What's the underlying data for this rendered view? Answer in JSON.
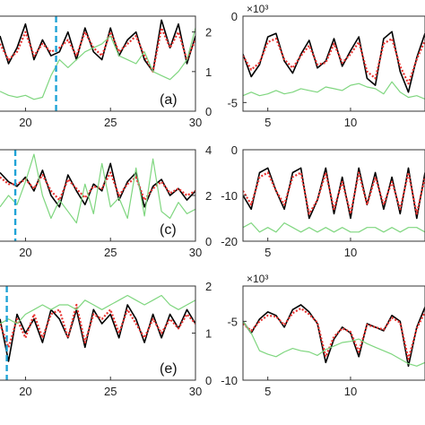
{
  "chart_data": [
    {
      "type": "line",
      "panel": "left-top",
      "label": "(a)",
      "xlim": [
        18.5,
        30
      ],
      "ylim": [
        0,
        2.4
      ],
      "xticks": [
        20,
        25,
        30
      ],
      "yticks": [
        0,
        1,
        2
      ],
      "vline_x": 21.8,
      "series": [
        {
          "color": "#000000",
          "style": "solid",
          "x": [
            18.5,
            19,
            19.5,
            20,
            20.5,
            21,
            21.5,
            22,
            22.5,
            23,
            23.5,
            24,
            24.5,
            25,
            25.5,
            26,
            26.5,
            27,
            27.5,
            28,
            28.5,
            29,
            29.5,
            30
          ],
          "y": [
            1.9,
            1.2,
            1.6,
            2.2,
            1.3,
            1.8,
            1.4,
            1.5,
            2.0,
            1.3,
            2.1,
            1.5,
            1.3,
            2.1,
            1.4,
            1.8,
            2.0,
            1.3,
            1.0,
            2.3,
            1.6,
            2.2,
            1.2,
            1.9
          ]
        },
        {
          "color": "#e8322f",
          "style": "dotted",
          "x": [
            18.5,
            19,
            19.5,
            20,
            20.5,
            21,
            21.5,
            22,
            22.5,
            23,
            23.5,
            24,
            24.5,
            25,
            25.5,
            26,
            26.5,
            27,
            27.5,
            28,
            28.5,
            29,
            29.5,
            30
          ],
          "y": [
            1.7,
            1.3,
            1.5,
            2.0,
            1.4,
            1.7,
            1.5,
            1.6,
            1.8,
            1.4,
            2.0,
            1.6,
            1.4,
            2.0,
            1.5,
            1.7,
            1.9,
            1.4,
            1.0,
            2.1,
            1.6,
            2.0,
            1.3,
            1.8
          ]
        },
        {
          "color": "#7fd67f",
          "style": "solid",
          "x": [
            18.5,
            19,
            19.5,
            20,
            20.5,
            21,
            21.5,
            22,
            22.5,
            23,
            23.5,
            24,
            24.5,
            25,
            25.5,
            26,
            26.5,
            27,
            27.5,
            28,
            28.5,
            29,
            29.5,
            30
          ],
          "y": [
            0.5,
            0.4,
            0.35,
            0.4,
            0.3,
            0.35,
            0.9,
            1.3,
            1.1,
            1.3,
            1.5,
            1.6,
            1.7,
            1.9,
            1.4,
            1.3,
            1.2,
            1.5,
            1.0,
            0.9,
            0.8,
            1.0,
            1.3,
            2.1
          ]
        }
      ]
    },
    {
      "type": "line",
      "panel": "right-top",
      "multiplier": "×10³",
      "xlim": [
        3.5,
        14.5
      ],
      "ylim": [
        -5.5,
        0
      ],
      "xticks": [
        5,
        10
      ],
      "yticks": [
        -5,
        0
      ],
      "series": [
        {
          "color": "#000000",
          "style": "solid",
          "x": [
            3.5,
            4,
            4.5,
            5,
            5.5,
            6,
            6.5,
            7,
            7.5,
            8,
            8.5,
            9,
            9.5,
            10,
            10.5,
            11,
            11.5,
            12,
            12.5,
            13,
            13.5,
            14,
            14.5
          ],
          "y": [
            -2.2,
            -3.5,
            -2.8,
            -1.2,
            -1.0,
            -2.6,
            -3.3,
            -2.2,
            -1.4,
            -3.0,
            -2.6,
            -1.3,
            -2.9,
            -2.0,
            -1.2,
            -3.6,
            -4.0,
            -1.3,
            -0.9,
            -3.2,
            -4.4,
            -2.4,
            -1.0
          ]
        },
        {
          "color": "#e8322f",
          "style": "dotted",
          "x": [
            3.5,
            4,
            4.5,
            5,
            5.5,
            6,
            6.5,
            7,
            7.5,
            8,
            8.5,
            9,
            9.5,
            10,
            10.5,
            11,
            11.5,
            12,
            12.5,
            13,
            13.5,
            14,
            14.5
          ],
          "y": [
            -2.3,
            -3.1,
            -2.7,
            -1.5,
            -1.3,
            -2.5,
            -3.0,
            -2.3,
            -1.7,
            -2.8,
            -2.7,
            -1.6,
            -2.7,
            -2.2,
            -1.5,
            -3.2,
            -3.6,
            -1.6,
            -1.3,
            -2.9,
            -3.9,
            -2.5,
            -1.4
          ]
        },
        {
          "color": "#7fd67f",
          "style": "solid",
          "x": [
            3.5,
            4,
            4.5,
            5,
            5.5,
            6,
            6.5,
            7,
            7.5,
            8,
            8.5,
            9,
            9.5,
            10,
            10.5,
            11,
            11.5,
            12,
            12.5,
            13,
            13.5,
            14,
            14.5
          ],
          "y": [
            -4.6,
            -4.4,
            -4.6,
            -4.5,
            -4.3,
            -4.5,
            -4.4,
            -4.2,
            -4.3,
            -4.4,
            -4.1,
            -4.2,
            -4.3,
            -4.0,
            -3.9,
            -4.1,
            -4.2,
            -4.5,
            -3.8,
            -4.4,
            -4.7,
            -4.6,
            -4.8
          ]
        }
      ]
    },
    {
      "type": "line",
      "panel": "left-middle",
      "label": "(c)",
      "xlim": [
        18.5,
        30
      ],
      "ylim": [
        0,
        4
      ],
      "xticks": [
        20,
        25,
        30
      ],
      "yticks": [
        0,
        2,
        4
      ],
      "vline_x": 19.4,
      "series": [
        {
          "color": "#000000",
          "style": "solid",
          "x": [
            18.5,
            19,
            19.5,
            20,
            20.5,
            21,
            21.5,
            22,
            22.5,
            23,
            23.5,
            24,
            24.5,
            25,
            25.5,
            26,
            26.5,
            27,
            27.5,
            28,
            28.5,
            29,
            29.5,
            30
          ],
          "y": [
            3.0,
            2.6,
            2.4,
            2.8,
            2.2,
            3.1,
            2.0,
            1.5,
            2.9,
            2.2,
            1.6,
            2.5,
            2.2,
            3.4,
            1.8,
            2.6,
            3.0,
            1.5,
            2.4,
            2.7,
            2.0,
            2.3,
            1.8,
            2.2
          ]
        },
        {
          "color": "#e8322f",
          "style": "dotted",
          "x": [
            18.5,
            19,
            19.5,
            20,
            20.5,
            21,
            21.5,
            22,
            22.5,
            23,
            23.5,
            24,
            24.5,
            25,
            25.5,
            26,
            26.5,
            27,
            27.5,
            28,
            28.5,
            29,
            29.5,
            30
          ],
          "y": [
            2.8,
            2.5,
            2.5,
            2.7,
            2.3,
            2.9,
            2.2,
            1.8,
            2.7,
            2.3,
            1.9,
            2.4,
            2.3,
            3.0,
            2.0,
            2.5,
            2.8,
            1.8,
            2.3,
            2.6,
            2.1,
            2.3,
            2.0,
            2.2
          ]
        },
        {
          "color": "#7fd67f",
          "style": "solid",
          "x": [
            18.5,
            19,
            19.5,
            20,
            20.5,
            21,
            21.5,
            22,
            22.5,
            23,
            23.5,
            24,
            24.5,
            25,
            25.5,
            26,
            26.5,
            27,
            27.5,
            28,
            28.5,
            29,
            29.5,
            30
          ],
          "y": [
            1.5,
            2.0,
            1.6,
            2.6,
            3.8,
            2.0,
            1.0,
            1.8,
            1.3,
            0.8,
            2.5,
            1.2,
            3.4,
            1.5,
            1.9,
            1.0,
            3.2,
            1.1,
            3.6,
            1.3,
            1.0,
            1.7,
            1.2,
            1.4
          ]
        }
      ]
    },
    {
      "type": "line",
      "panel": "right-middle",
      "xlim": [
        3.5,
        14.5
      ],
      "ylim": [
        -20,
        0
      ],
      "xticks": [
        5,
        10
      ],
      "yticks": [
        -20,
        -10,
        0
      ],
      "series": [
        {
          "color": "#000000",
          "style": "solid",
          "x": [
            3.5,
            4,
            4.5,
            5,
            5.5,
            6,
            6.5,
            7,
            7.5,
            8,
            8.5,
            9,
            9.5,
            10,
            10.5,
            11,
            11.5,
            12,
            12.5,
            13,
            13.5,
            14,
            14.5
          ],
          "y": [
            -10,
            -13,
            -5,
            -4,
            -9,
            -13,
            -5,
            -4,
            -15,
            -11,
            -4,
            -14,
            -6,
            -15,
            -4,
            -12,
            -5,
            -13,
            -6,
            -14,
            -4,
            -15,
            -5
          ]
        },
        {
          "color": "#e8322f",
          "style": "dotted",
          "x": [
            3.5,
            4,
            4.5,
            5,
            5.5,
            6,
            6.5,
            7,
            7.5,
            8,
            8.5,
            9,
            9.5,
            10,
            10.5,
            11,
            11.5,
            12,
            12.5,
            13,
            13.5,
            14,
            14.5
          ],
          "y": [
            -9,
            -12,
            -6,
            -5,
            -9,
            -12,
            -6,
            -5,
            -14,
            -11,
            -5,
            -13,
            -7,
            -14,
            -5,
            -12,
            -6,
            -12,
            -7,
            -13,
            -5,
            -14,
            -6
          ]
        },
        {
          "color": "#7fd67f",
          "style": "solid",
          "x": [
            3.5,
            4,
            4.5,
            5,
            5.5,
            6,
            6.5,
            7,
            7.5,
            8,
            8.5,
            9,
            9.5,
            10,
            10.5,
            11,
            11.5,
            12,
            12.5,
            13,
            13.5,
            14,
            14.5
          ],
          "y": [
            -17,
            -16,
            -18,
            -17,
            -18,
            -16,
            -17,
            -18,
            -17,
            -18,
            -17,
            -18,
            -17,
            -18,
            -18,
            -17,
            -17,
            -18,
            -17,
            -18,
            -17,
            -17,
            -18
          ]
        }
      ]
    },
    {
      "type": "line",
      "panel": "left-bottom",
      "label": "(e)",
      "xlim": [
        18.5,
        30
      ],
      "ylim": [
        0,
        2
      ],
      "xticks": [
        20,
        25,
        30
      ],
      "yticks": [
        0,
        1,
        2
      ],
      "vline_x": 18.9,
      "series": [
        {
          "color": "#000000",
          "style": "solid",
          "x": [
            18.5,
            19,
            19.5,
            20,
            20.5,
            21,
            21.5,
            22,
            22.5,
            23,
            23.5,
            24,
            24.5,
            25,
            25.5,
            26,
            26.5,
            27,
            27.5,
            28,
            28.5,
            29,
            29.5,
            30
          ],
          "y": [
            1.3,
            0.4,
            1.4,
            1.0,
            1.3,
            0.8,
            1.5,
            1.3,
            0.9,
            1.5,
            0.7,
            1.5,
            1.2,
            1.4,
            0.9,
            1.6,
            1.3,
            0.8,
            1.4,
            0.9,
            1.4,
            1.1,
            1.5,
            1.2
          ]
        },
        {
          "color": "#e8322f",
          "style": "dotted",
          "x": [
            18.5,
            19,
            19.5,
            20,
            20.5,
            21,
            21.5,
            22,
            22.5,
            23,
            23.5,
            24,
            24.5,
            25,
            25.5,
            26,
            26.5,
            27,
            27.5,
            28,
            28.5,
            29,
            29.5,
            30
          ],
          "y": [
            1.2,
            0.7,
            1.3,
            0.9,
            1.4,
            0.9,
            1.4,
            1.5,
            0.9,
            1.6,
            0.8,
            1.4,
            1.3,
            1.5,
            1.0,
            1.5,
            1.2,
            0.9,
            1.3,
            1.0,
            1.3,
            1.1,
            1.4,
            1.2
          ]
        },
        {
          "color": "#7fd67f",
          "style": "solid",
          "x": [
            18.5,
            19,
            19.5,
            20,
            20.5,
            21,
            21.5,
            22,
            22.5,
            23,
            23.5,
            24,
            24.5,
            25,
            25.5,
            26,
            26.5,
            27,
            27.5,
            28,
            28.5,
            29,
            29.5,
            30
          ],
          "y": [
            1.2,
            1.3,
            1.2,
            1.4,
            1.5,
            1.6,
            1.5,
            1.6,
            1.6,
            1.5,
            1.7,
            1.6,
            1.5,
            1.6,
            1.7,
            1.8,
            1.7,
            1.6,
            1.7,
            1.8,
            1.6,
            1.5,
            1.6,
            1.7
          ]
        }
      ]
    },
    {
      "type": "line",
      "panel": "right-bottom",
      "multiplier": "×10³",
      "xlim": [
        3.5,
        14.5
      ],
      "ylim": [
        -10,
        -2
      ],
      "xticks": [
        5,
        10
      ],
      "yticks": [
        -10,
        -5
      ],
      "series": [
        {
          "color": "#000000",
          "style": "solid",
          "x": [
            3.5,
            4,
            4.5,
            5,
            5.5,
            6,
            6.5,
            7,
            7.5,
            8,
            8.5,
            9,
            9.5,
            10,
            10.5,
            11,
            11.5,
            12,
            12.5,
            13,
            13.5,
            14,
            14.5
          ],
          "y": [
            -5,
            -6,
            -4.8,
            -4.2,
            -4.5,
            -5.5,
            -4.0,
            -3.6,
            -4.2,
            -5.2,
            -8.5,
            -6.5,
            -5.5,
            -6.0,
            -8.0,
            -5.2,
            -5.5,
            -5.8,
            -4.5,
            -5.0,
            -8.8,
            -5.5,
            -3.8
          ]
        },
        {
          "color": "#e8322f",
          "style": "dotted",
          "x": [
            3.5,
            4,
            4.5,
            5,
            5.5,
            6,
            6.5,
            7,
            7.5,
            8,
            8.5,
            9,
            9.5,
            10,
            10.5,
            11,
            11.5,
            12,
            12.5,
            13,
            13.5,
            14,
            14.5
          ],
          "y": [
            -5.2,
            -5.8,
            -5.0,
            -4.5,
            -4.6,
            -5.3,
            -4.3,
            -3.9,
            -4.4,
            -5.1,
            -8.0,
            -6.3,
            -5.6,
            -5.9,
            -7.6,
            -5.3,
            -5.5,
            -5.7,
            -4.7,
            -5.1,
            -8.2,
            -5.6,
            -4.2
          ]
        },
        {
          "color": "#7fd67f",
          "style": "solid",
          "x": [
            3.5,
            4,
            4.5,
            5,
            5.5,
            6,
            6.5,
            7,
            7.5,
            8,
            8.5,
            9,
            9.5,
            10,
            10.5,
            11,
            11.5,
            12,
            12.5,
            13,
            13.5,
            14,
            14.5
          ],
          "y": [
            -5.0,
            -6.0,
            -7.5,
            -7.8,
            -8.0,
            -7.6,
            -7.3,
            -7.5,
            -7.6,
            -7.9,
            -7.4,
            -7.1,
            -6.8,
            -6.7,
            -6.5,
            -6.9,
            -7.2,
            -7.5,
            -7.8,
            -8.2,
            -8.6,
            -8.8,
            -8.5
          ]
        }
      ]
    }
  ]
}
